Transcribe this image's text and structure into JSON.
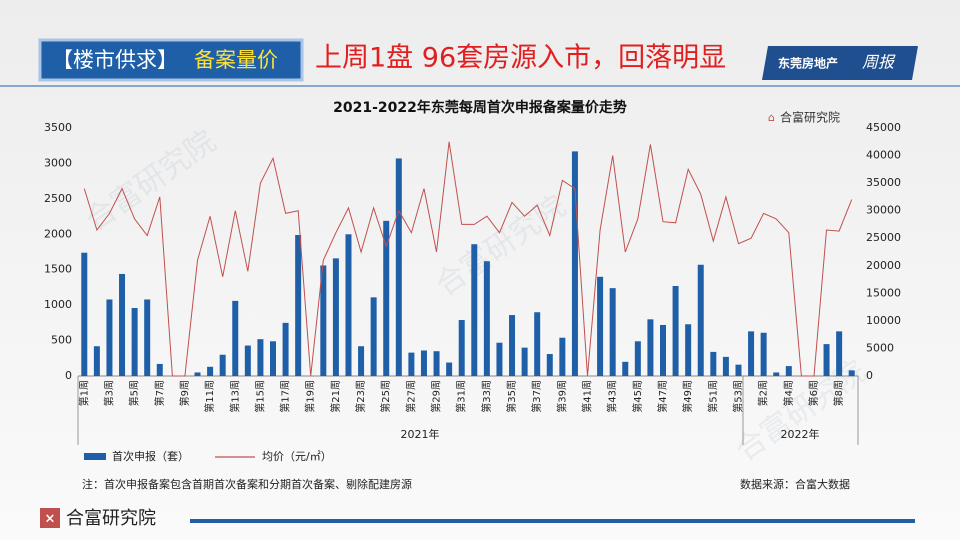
{
  "header": {
    "tag": "【楼市供求】",
    "tag_highlight": "备案量价",
    "headline": "上周1盘 96套房源入市，回落明显",
    "logo": "东莞房地产",
    "logo_script": "周报"
  },
  "watermark": "合富研究院",
  "chart_data": {
    "type": "bar-line",
    "title": "2021-2022年东莞每周首次申报备案量价走势",
    "brand": "合富研究院",
    "categories": [
      "第1周",
      null,
      "第3周",
      null,
      "第5周",
      null,
      "第7周",
      null,
      "第9周",
      null,
      "第11周",
      null,
      "第13周",
      null,
      "第15周",
      null,
      "第17周",
      null,
      "第19周",
      null,
      "第21周",
      null,
      "第23周",
      null,
      "第25周",
      null,
      "第27周",
      null,
      "第29周",
      null,
      "第31周",
      null,
      "第33周",
      null,
      "第35周",
      null,
      "第37周",
      null,
      "第39周",
      null,
      "第41周",
      null,
      "第43周",
      null,
      "第45周",
      null,
      "第47周",
      null,
      "第49周",
      null,
      "第51周",
      null,
      "第53周",
      null,
      "第2周",
      null,
      "第4周",
      null,
      "第6周",
      null,
      "第8周",
      null
    ],
    "year_labels": [
      "2021年",
      "2022年"
    ],
    "series": [
      {
        "name": "首次申报（套）",
        "color": "#1f5fa8",
        "values": [
          1740,
          420,
          1080,
          1440,
          960,
          1080,
          170,
          0,
          0,
          50,
          130,
          300,
          1060,
          430,
          520,
          490,
          750,
          1990,
          0,
          1560,
          1660,
          2000,
          420,
          1110,
          2190,
          3070,
          330,
          360,
          350,
          190,
          790,
          1860,
          1620,
          470,
          860,
          400,
          900,
          310,
          540,
          3170,
          0,
          1400,
          1240,
          200,
          490,
          800,
          720,
          1270,
          730,
          1570,
          340,
          270,
          160,
          630,
          610,
          50,
          140,
          0,
          0,
          450,
          630,
          80
        ]
      },
      {
        "name": "均价（元/㎡）",
        "color": "#c0504d",
        "axis": "y2",
        "values": [
          34000,
          26500,
          29500,
          34000,
          28500,
          25500,
          32500,
          0,
          0,
          21000,
          29000,
          18000,
          30000,
          19000,
          35000,
          39500,
          29500,
          30000,
          0,
          21000,
          26000,
          30500,
          22500,
          30500,
          23500,
          30000,
          26000,
          34000,
          22500,
          42500,
          27500,
          27500,
          29000,
          26000,
          31500,
          29000,
          31000,
          25500,
          35500,
          34000,
          0,
          26500,
          40000,
          22500,
          28500,
          42000,
          28000,
          27800,
          37500,
          33000,
          24500,
          32500,
          24000,
          25000,
          29500,
          28500,
          26000,
          0,
          0,
          26500,
          26300,
          32000
        ]
      }
    ],
    "ylim": [
      0,
      3500
    ],
    "yticks": [
      0,
      500,
      1000,
      1500,
      2000,
      2500,
      3000,
      3500
    ],
    "y2lim": [
      0,
      45000
    ],
    "y2ticks": [
      0,
      5000,
      10000,
      15000,
      20000,
      25000,
      30000,
      35000,
      40000,
      45000
    ],
    "note": "注：首次申报备案包含首期首次备案和分期首次备案、剔除配建房源",
    "source": "数据来源：合富大数据"
  },
  "footer": "合富研究院"
}
